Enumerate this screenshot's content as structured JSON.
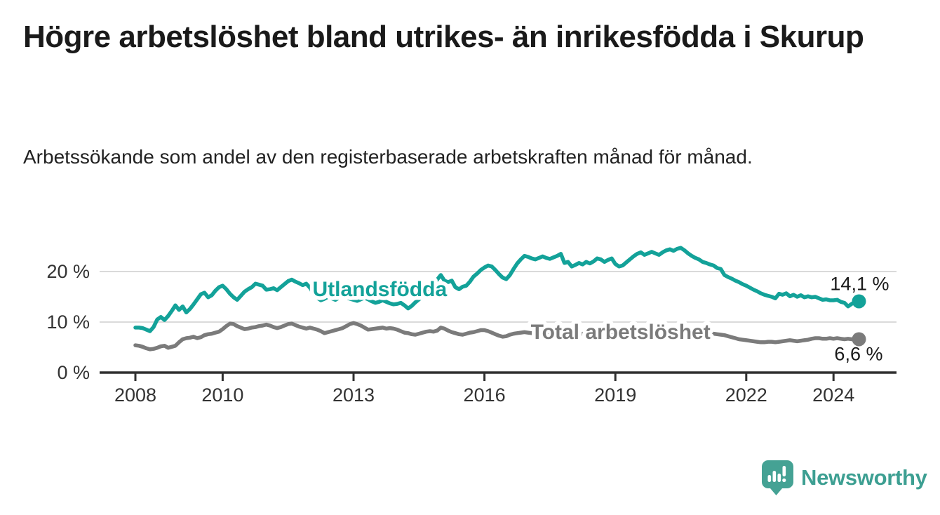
{
  "header": {
    "title": "Högre arbetslöshet bland utrikes- än inrikesfödda i Skurup",
    "subtitle": "Arbetssökande som andel av den registerbaserade arbetskraften månad för månad."
  },
  "chart_data": {
    "type": "line",
    "title": "Högre arbetslöshet bland utrikes- än inrikesfödda i Skurup",
    "subtitle": "Arbetssökande som andel av den registerbaserade arbetskraften månad för månad.",
    "x_unit": "months from 2008-01",
    "x_start_year": 2008,
    "x_end_label_values": true,
    "grid": true,
    "ylim": [
      0,
      27
    ],
    "y_ticks": [
      {
        "value": 0,
        "label": "0 %"
      },
      {
        "value": 10,
        "label": "10 %"
      },
      {
        "value": 20,
        "label": "20 %"
      }
    ],
    "x_ticks": [
      {
        "year": 2008,
        "label": "2008"
      },
      {
        "year": 2010,
        "label": "2010"
      },
      {
        "year": 2013,
        "label": "2013"
      },
      {
        "year": 2016,
        "label": "2016"
      },
      {
        "year": 2019,
        "label": "2019"
      },
      {
        "year": 2022,
        "label": "2022"
      },
      {
        "year": 2024,
        "label": "2024"
      }
    ],
    "series": [
      {
        "name": "Total arbetslöshet",
        "color": "#7b7b7b",
        "end_label": "6,6 %",
        "end_value": 6.6,
        "label_anchor": {
          "year": 2019.12,
          "value": 8.05
        },
        "end_label_offset": {
          "dx": 34,
          "dy": 30
        },
        "values": [
          5.4,
          5.3,
          5.1,
          4.8,
          4.6,
          4.7,
          4.9,
          5.2,
          5.3,
          4.9,
          5.1,
          5.3,
          6.0,
          6.6,
          6.8,
          6.9,
          7.1,
          6.8,
          7.0,
          7.4,
          7.6,
          7.7,
          7.9,
          8.1,
          8.6,
          9.2,
          9.7,
          9.6,
          9.2,
          8.9,
          8.6,
          8.7,
          8.9,
          9.0,
          9.2,
          9.3,
          9.5,
          9.3,
          9.0,
          8.8,
          9.0,
          9.3,
          9.6,
          9.7,
          9.4,
          9.1,
          8.9,
          8.7,
          8.9,
          8.7,
          8.5,
          8.2,
          7.8,
          8.0,
          8.2,
          8.4,
          8.6,
          8.8,
          9.2,
          9.6,
          9.8,
          9.6,
          9.3,
          8.9,
          8.5,
          8.6,
          8.7,
          8.8,
          8.9,
          8.7,
          8.8,
          8.7,
          8.5,
          8.2,
          7.9,
          7.8,
          7.6,
          7.5,
          7.7,
          7.9,
          8.1,
          8.2,
          8.1,
          8.3,
          8.9,
          8.7,
          8.3,
          8.0,
          7.8,
          7.6,
          7.5,
          7.7,
          7.9,
          8.0,
          8.2,
          8.4,
          8.4,
          8.2,
          7.9,
          7.6,
          7.3,
          7.1,
          7.2,
          7.5,
          7.7,
          7.8,
          7.9,
          8.0,
          7.9,
          7.8,
          7.7,
          7.8,
          7.9,
          7.8,
          7.7,
          7.8,
          7.9,
          8.0,
          7.9,
          7.8,
          7.8,
          7.7,
          7.6,
          7.7,
          7.8,
          7.7,
          7.6,
          7.7,
          7.8,
          7.7,
          7.6,
          7.7,
          7.7,
          7.6,
          7.5,
          7.6,
          7.7,
          7.8,
          7.9,
          8.0,
          7.9,
          7.8,
          7.9,
          8.0,
          8.3,
          8.5,
          8.8,
          9.0,
          9.0,
          8.9,
          8.8,
          8.7,
          8.6,
          8.4,
          8.3,
          8.2,
          8.0,
          7.9,
          7.8,
          7.7,
          7.6,
          7.5,
          7.4,
          7.2,
          7.0,
          6.8,
          6.6,
          6.5,
          6.4,
          6.3,
          6.2,
          6.1,
          6.0,
          6.0,
          6.1,
          6.1,
          6.0,
          6.1,
          6.2,
          6.3,
          6.4,
          6.3,
          6.2,
          6.3,
          6.4,
          6.5,
          6.7,
          6.8,
          6.8,
          6.7,
          6.7,
          6.8,
          6.7,
          6.8,
          6.7,
          6.6,
          6.7,
          6.6,
          6.7,
          6.6
        ]
      },
      {
        "name": "Utlandsfödda",
        "color": "#13a299",
        "end_label": "14,1 %",
        "end_value": 14.1,
        "label_anchor": {
          "year": 2013.6,
          "value": 16.5
        },
        "end_label_offset": {
          "dx": 43,
          "dy": -16
        },
        "values": [
          8.9,
          8.9,
          8.8,
          8.5,
          8.2,
          9.0,
          10.5,
          11.0,
          10.4,
          11.2,
          12.2,
          13.3,
          12.4,
          13.1,
          11.9,
          12.6,
          13.5,
          14.5,
          15.5,
          15.8,
          14.9,
          15.3,
          16.2,
          16.9,
          17.2,
          16.5,
          15.6,
          14.9,
          14.4,
          15.2,
          16.0,
          16.5,
          16.9,
          17.6,
          17.4,
          17.2,
          16.4,
          16.5,
          16.7,
          16.3,
          16.9,
          17.5,
          18.1,
          18.4,
          18.0,
          17.7,
          17.3,
          17.6,
          16.8,
          15.6,
          14.8,
          14.3,
          14.6,
          15.0,
          14.7,
          14.4,
          14.8,
          15.2,
          14.9,
          14.6,
          14.4,
          14.2,
          14.5,
          14.8,
          14.5,
          14.1,
          13.8,
          14.0,
          14.3,
          14.0,
          13.7,
          13.5,
          13.6,
          13.8,
          13.3,
          12.7,
          13.2,
          13.9,
          14.5,
          15.2,
          15.9,
          16.6,
          17.5,
          18.4,
          19.3,
          18.2,
          17.9,
          18.2,
          16.9,
          16.5,
          17.0,
          17.2,
          18.0,
          19.0,
          19.6,
          20.3,
          20.8,
          21.2,
          21.0,
          20.3,
          19.5,
          18.8,
          18.5,
          19.3,
          20.5,
          21.6,
          22.4,
          23.1,
          22.9,
          22.6,
          22.4,
          22.7,
          23.0,
          22.7,
          22.5,
          22.8,
          23.1,
          23.5,
          21.7,
          21.9,
          21.0,
          21.3,
          21.7,
          21.4,
          21.9,
          21.6,
          22.0,
          22.6,
          22.4,
          21.9,
          22.3,
          22.6,
          21.5,
          21.0,
          21.2,
          21.8,
          22.4,
          23.0,
          23.5,
          23.8,
          23.3,
          23.6,
          23.9,
          23.6,
          23.3,
          23.8,
          24.2,
          24.4,
          24.1,
          24.5,
          24.7,
          24.2,
          23.6,
          23.1,
          22.7,
          22.4,
          21.9,
          21.7,
          21.4,
          21.2,
          20.7,
          20.5,
          19.3,
          18.9,
          18.6,
          18.2,
          17.9,
          17.5,
          17.2,
          16.8,
          16.4,
          16.1,
          15.7,
          15.4,
          15.2,
          15.0,
          14.7,
          15.6,
          15.4,
          15.7,
          15.1,
          15.4,
          15.0,
          15.3,
          14.9,
          15.1,
          14.9,
          15.0,
          14.7,
          14.4,
          14.5,
          14.3,
          14.3,
          14.4,
          14.0,
          13.8,
          13.1,
          13.6,
          14.0,
          14.1
        ]
      }
    ],
    "legend_position": "inline-labels-on-lines"
  },
  "footer": {
    "brand": "Newsworthy"
  },
  "colors": {
    "accent_teal": "#13a299",
    "series_gray": "#7b7b7b",
    "logo_teal": "#3d9f92",
    "grid": "#dadada",
    "axis": "#303030",
    "text": "#1a1a1a"
  }
}
